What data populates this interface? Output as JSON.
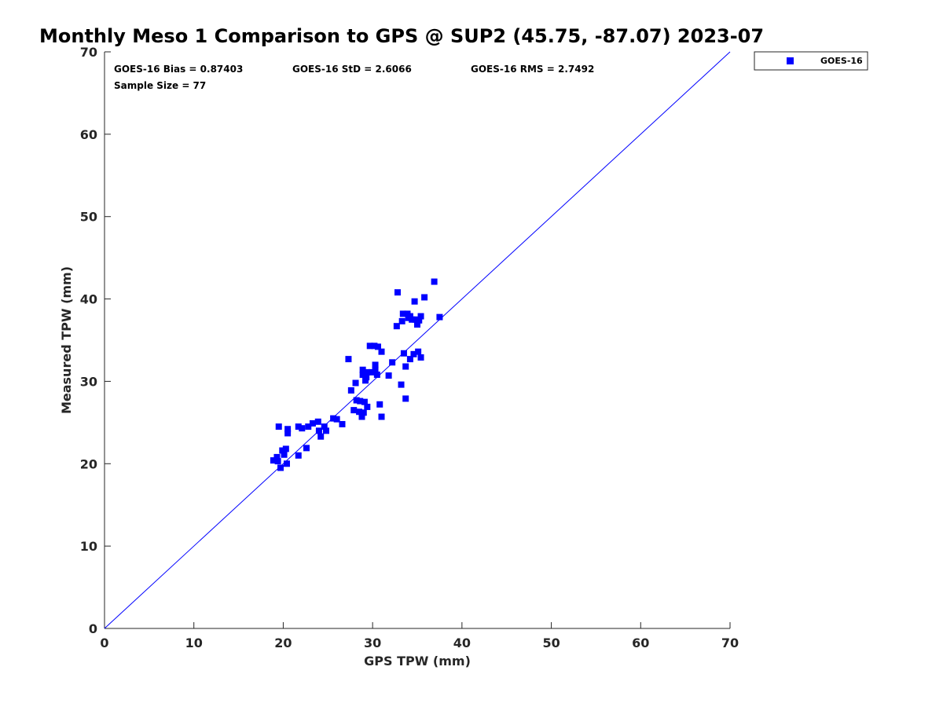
{
  "chart_data": {
    "type": "scatter",
    "title": "Monthly Meso 1 Comparison to GPS @ SUP2 (45.75, -87.07) 2023-07",
    "xlabel": "GPS TPW (mm)",
    "ylabel": "Measured TPW (mm)",
    "xlim": [
      0,
      70
    ],
    "ylim": [
      0,
      70
    ],
    "xticks": [
      0,
      10,
      20,
      30,
      40,
      50,
      60,
      70
    ],
    "yticks": [
      0,
      10,
      20,
      30,
      40,
      50,
      60,
      70
    ],
    "grid": false,
    "legend_position": "outside-top-right",
    "reference_line": {
      "from": [
        0,
        0
      ],
      "to": [
        70,
        70
      ],
      "color": "#0000ff"
    },
    "stats": {
      "bias": "GOES-16 Bias = 0.87403",
      "std": "GOES-16 StD = 2.6066",
      "rms": "GOES-16 RMS = 2.7492",
      "sample": "Sample Size = 77"
    },
    "series": [
      {
        "name": "GOES-16",
        "color": "#0000ff",
        "marker": "square",
        "points": [
          [
            18.9,
            20.4
          ],
          [
            19.3,
            20.8
          ],
          [
            19.4,
            20.3
          ],
          [
            19.5,
            24.5
          ],
          [
            19.7,
            19.5
          ],
          [
            19.9,
            21.6
          ],
          [
            20.1,
            21.1
          ],
          [
            20.3,
            21.8
          ],
          [
            20.4,
            20.0
          ],
          [
            20.5,
            23.7
          ],
          [
            20.5,
            24.2
          ],
          [
            21.7,
            24.5
          ],
          [
            21.7,
            21.0
          ],
          [
            22.1,
            24.3
          ],
          [
            22.6,
            21.9
          ],
          [
            22.8,
            24.5
          ],
          [
            23.3,
            24.9
          ],
          [
            23.9,
            25.1
          ],
          [
            24.0,
            24.0
          ],
          [
            24.2,
            23.3
          ],
          [
            24.6,
            24.5
          ],
          [
            24.8,
            24.0
          ],
          [
            25.6,
            25.5
          ],
          [
            26.0,
            25.4
          ],
          [
            26.6,
            24.8
          ],
          [
            27.3,
            32.7
          ],
          [
            27.6,
            28.9
          ],
          [
            27.9,
            26.5
          ],
          [
            28.1,
            29.8
          ],
          [
            28.2,
            27.7
          ],
          [
            28.5,
            26.3
          ],
          [
            28.6,
            27.6
          ],
          [
            28.9,
            31.4
          ],
          [
            28.8,
            25.7
          ],
          [
            28.9,
            30.8
          ],
          [
            29.0,
            26.2
          ],
          [
            29.1,
            27.5
          ],
          [
            29.2,
            30.1
          ],
          [
            29.3,
            30.5
          ],
          [
            29.4,
            31.1
          ],
          [
            29.4,
            26.9
          ],
          [
            29.7,
            34.3
          ],
          [
            29.9,
            31.1
          ],
          [
            30.2,
            34.3
          ],
          [
            30.3,
            32.0
          ],
          [
            30.3,
            31.4
          ],
          [
            30.5,
            30.8
          ],
          [
            30.6,
            34.2
          ],
          [
            30.8,
            27.2
          ],
          [
            31.0,
            33.6
          ],
          [
            31.0,
            25.7
          ],
          [
            31.8,
            30.7
          ],
          [
            32.2,
            32.3
          ],
          [
            32.7,
            36.7
          ],
          [
            32.8,
            40.8
          ],
          [
            33.2,
            29.6
          ],
          [
            33.3,
            37.3
          ],
          [
            33.4,
            38.2
          ],
          [
            33.5,
            33.4
          ],
          [
            33.7,
            27.9
          ],
          [
            33.7,
            31.8
          ],
          [
            33.9,
            38.2
          ],
          [
            34.0,
            37.7
          ],
          [
            34.2,
            32.7
          ],
          [
            34.2,
            37.9
          ],
          [
            34.4,
            37.5
          ],
          [
            34.6,
            33.3
          ],
          [
            34.7,
            39.7
          ],
          [
            34.8,
            37.5
          ],
          [
            35.0,
            36.9
          ],
          [
            35.1,
            33.6
          ],
          [
            35.2,
            37.4
          ],
          [
            35.4,
            37.9
          ],
          [
            35.4,
            32.9
          ],
          [
            35.8,
            40.2
          ],
          [
            36.9,
            42.1
          ],
          [
            37.5,
            37.8
          ]
        ]
      }
    ]
  }
}
